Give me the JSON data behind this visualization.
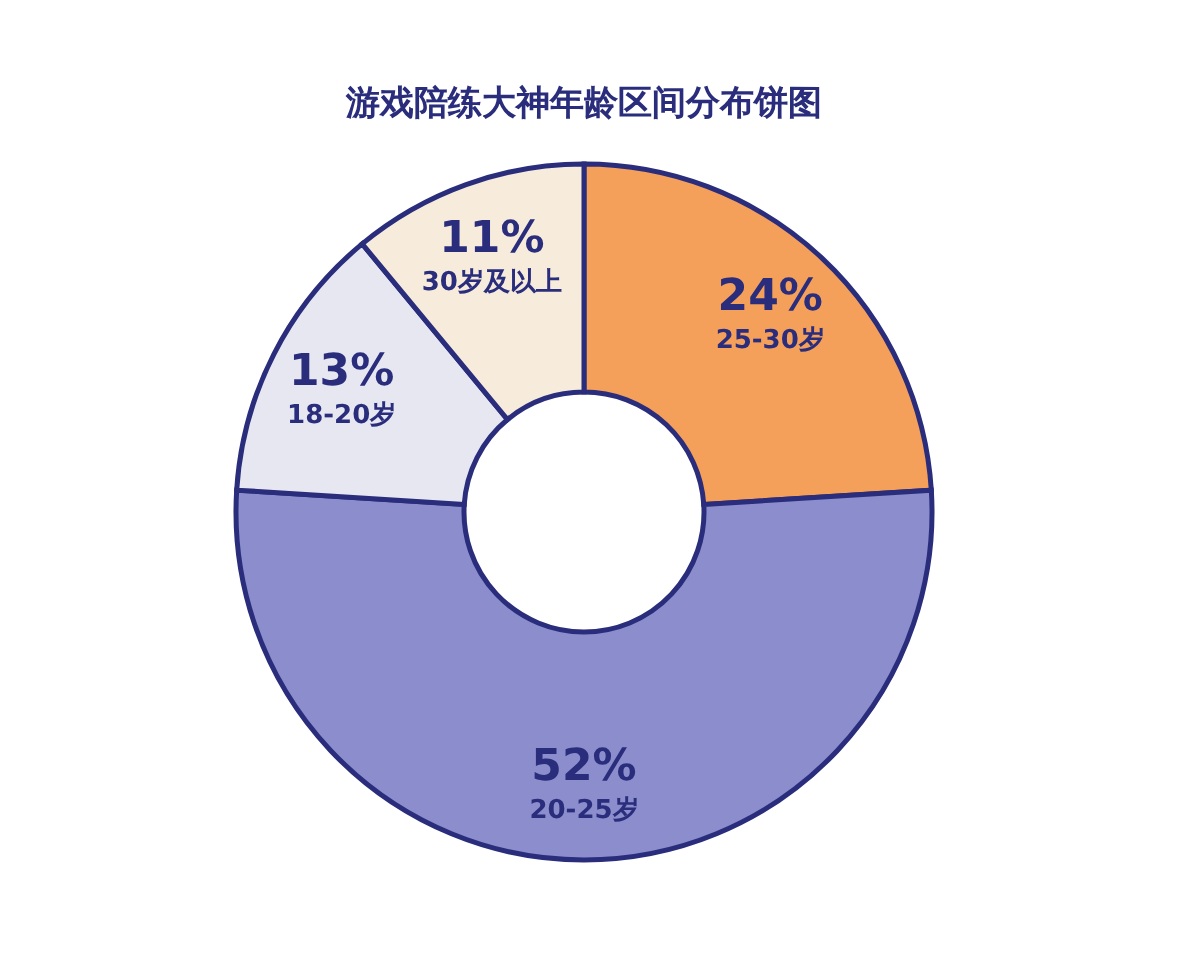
{
  "chart_data": {
    "type": "donut",
    "title": "游戏陪练大神年龄区间分布饼图",
    "categories": [
      "25-30岁",
      "20-25岁",
      "18-20岁",
      "30岁及以上"
    ],
    "values": [
      24,
      52,
      13,
      11
    ],
    "colors": [
      "#f5a05a",
      "#8b8dcc",
      "#e6e7f1",
      "#f7ecdc"
    ],
    "value_labels": [
      "24%",
      "52%",
      "13%",
      "11%"
    ]
  }
}
